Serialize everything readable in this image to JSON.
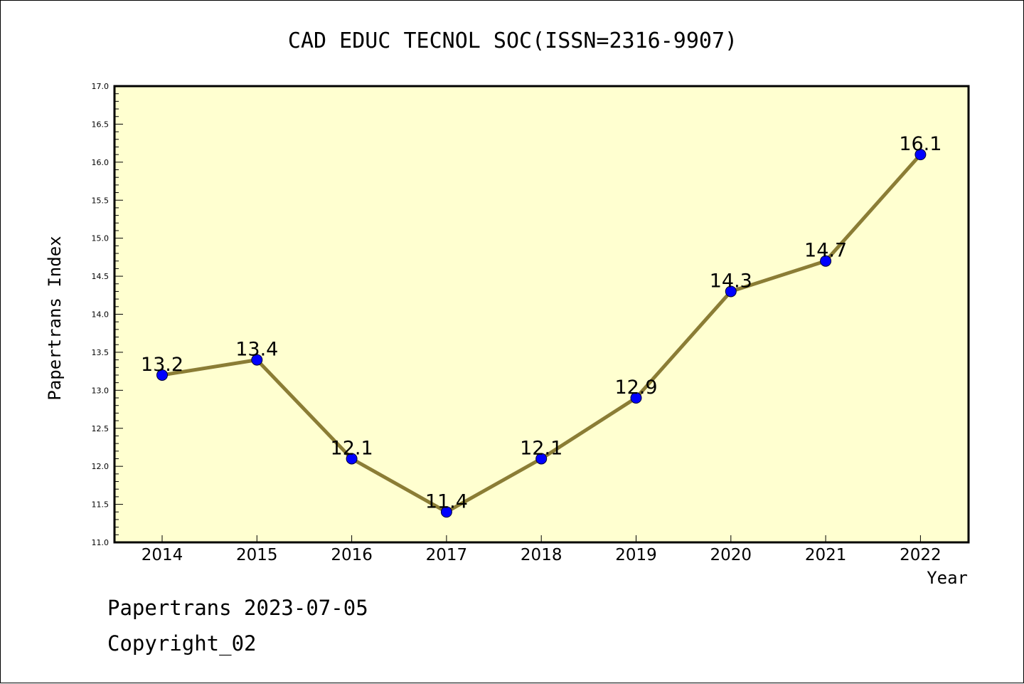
{
  "chart_data": {
    "type": "line",
    "title": "CAD EDUC TECNOL SOC(ISSN=2316-9907)",
    "xlabel": "Year",
    "ylabel": "Papertrans Index",
    "x": [
      "2014",
      "2015",
      "2016",
      "2017",
      "2018",
      "2019",
      "2020",
      "2021",
      "2022"
    ],
    "values": [
      13.2,
      13.4,
      12.1,
      11.4,
      12.1,
      12.9,
      14.3,
      14.7,
      16.1
    ],
    "data_labels": [
      "13.2",
      "13.4",
      "12.1",
      "11.4",
      "12.1",
      "12.9",
      "14.3",
      "14.7",
      "16.1"
    ],
    "ylim": [
      11.0,
      17.0
    ],
    "yticks": [
      "11.0",
      "11.5",
      "12.0",
      "12.5",
      "13.0",
      "13.5",
      "14.0",
      "14.5",
      "15.0",
      "15.5",
      "16.0",
      "16.5",
      "17.0"
    ],
    "grid": false,
    "colors": {
      "plot_background": "#ffffd0",
      "line": "#8b7d35",
      "marker": "#0000ff"
    }
  },
  "footer": {
    "line1": "Papertrans 2023-07-05",
    "line2": "Copyright_02"
  }
}
